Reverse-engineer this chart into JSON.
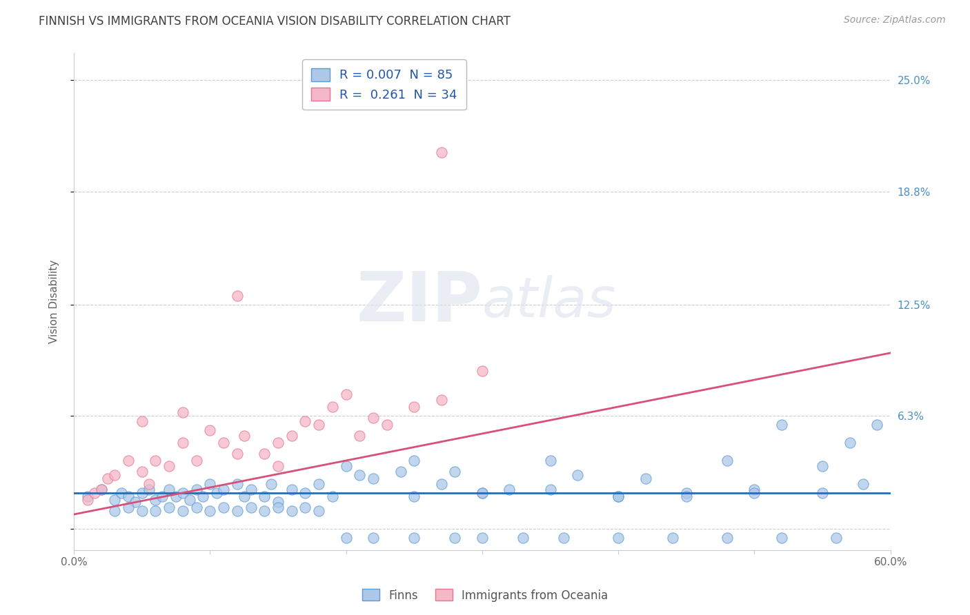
{
  "title": "FINNISH VS IMMIGRANTS FROM OCEANIA VISION DISABILITY CORRELATION CHART",
  "source_text": "Source: ZipAtlas.com",
  "ylabel": "Vision Disability",
  "watermark": "ZIPatlas",
  "legend_finn_R": "0.007",
  "legend_finn_N": "85",
  "legend_imm_R": "0.261",
  "legend_imm_N": "34",
  "legend_label_finn": "Finns",
  "legend_label_imm": "Immigrants from Oceania",
  "xlim": [
    0.0,
    0.6
  ],
  "ylim": [
    -0.012,
    0.265
  ],
  "yticks": [
    0.0,
    0.063,
    0.125,
    0.188,
    0.25
  ],
  "ytick_labels": [
    "",
    "6.3%",
    "12.5%",
    "18.8%",
    "25.0%"
  ],
  "xticks": [
    0.0,
    0.1,
    0.2,
    0.3,
    0.4,
    0.5,
    0.6
  ],
  "xtick_labels": [
    "0.0%",
    "",
    "",
    "",
    "",
    "",
    "60.0%"
  ],
  "blue_color": "#adc8e8",
  "blue_edge_color": "#5b9bd5",
  "pink_color": "#f4b8c8",
  "pink_edge_color": "#e8758f",
  "trend_blue_color": "#2b6cb0",
  "trend_pink_color": "#d94f78",
  "grid_color": "#cccccc",
  "title_color": "#404040",
  "axis_label_color": "#606060",
  "right_tick_color": "#4a90c4",
  "finn_scatter_x": [
    0.01,
    0.02,
    0.03,
    0.035,
    0.04,
    0.045,
    0.05,
    0.055,
    0.06,
    0.065,
    0.07,
    0.075,
    0.08,
    0.085,
    0.09,
    0.095,
    0.1,
    0.105,
    0.11,
    0.12,
    0.125,
    0.13,
    0.14,
    0.145,
    0.15,
    0.16,
    0.17,
    0.18,
    0.19,
    0.2,
    0.21,
    0.22,
    0.24,
    0.25,
    0.27,
    0.28,
    0.3,
    0.32,
    0.35,
    0.37,
    0.4,
    0.42,
    0.45,
    0.48,
    0.5,
    0.52,
    0.55,
    0.57,
    0.58,
    0.59,
    0.03,
    0.04,
    0.05,
    0.06,
    0.07,
    0.08,
    0.09,
    0.1,
    0.11,
    0.12,
    0.13,
    0.14,
    0.15,
    0.16,
    0.17,
    0.18,
    0.2,
    0.22,
    0.25,
    0.28,
    0.3,
    0.33,
    0.36,
    0.4,
    0.44,
    0.48,
    0.52,
    0.56,
    0.25,
    0.3,
    0.35,
    0.4,
    0.45,
    0.5,
    0.55
  ],
  "finn_scatter_y": [
    0.018,
    0.022,
    0.016,
    0.02,
    0.018,
    0.015,
    0.02,
    0.022,
    0.016,
    0.018,
    0.022,
    0.018,
    0.02,
    0.016,
    0.022,
    0.018,
    0.025,
    0.02,
    0.022,
    0.025,
    0.018,
    0.022,
    0.018,
    0.025,
    0.015,
    0.022,
    0.02,
    0.025,
    0.018,
    0.035,
    0.03,
    0.028,
    0.032,
    0.038,
    0.025,
    0.032,
    0.02,
    0.022,
    0.038,
    0.03,
    0.018,
    0.028,
    0.02,
    0.038,
    0.022,
    0.058,
    0.035,
    0.048,
    0.025,
    0.058,
    0.01,
    0.012,
    0.01,
    0.01,
    0.012,
    0.01,
    0.012,
    0.01,
    0.012,
    0.01,
    0.012,
    0.01,
    0.012,
    0.01,
    0.012,
    0.01,
    -0.005,
    -0.005,
    -0.005,
    -0.005,
    -0.005,
    -0.005,
    -0.005,
    -0.005,
    -0.005,
    -0.005,
    -0.005,
    -0.005,
    0.018,
    0.02,
    0.022,
    0.018,
    0.018,
    0.02,
    0.02
  ],
  "imm_scatter_x": [
    0.01,
    0.015,
    0.02,
    0.025,
    0.03,
    0.04,
    0.05,
    0.055,
    0.06,
    0.07,
    0.08,
    0.09,
    0.1,
    0.11,
    0.12,
    0.125,
    0.14,
    0.15,
    0.16,
    0.17,
    0.18,
    0.19,
    0.2,
    0.21,
    0.22,
    0.23,
    0.25,
    0.27,
    0.3,
    0.05,
    0.08,
    0.12,
    0.15,
    0.27
  ],
  "imm_scatter_y": [
    0.016,
    0.02,
    0.022,
    0.028,
    0.03,
    0.038,
    0.032,
    0.025,
    0.038,
    0.035,
    0.048,
    0.038,
    0.055,
    0.048,
    0.042,
    0.052,
    0.042,
    0.035,
    0.052,
    0.06,
    0.058,
    0.068,
    0.075,
    0.052,
    0.062,
    0.058,
    0.068,
    0.072,
    0.088,
    0.06,
    0.065,
    0.13,
    0.048,
    0.21
  ],
  "finn_trend_x": [
    0.0,
    0.6
  ],
  "finn_trend_y": [
    0.02,
    0.02
  ],
  "imm_trend_x": [
    0.0,
    0.6
  ],
  "imm_trend_y": [
    0.008,
    0.098
  ]
}
